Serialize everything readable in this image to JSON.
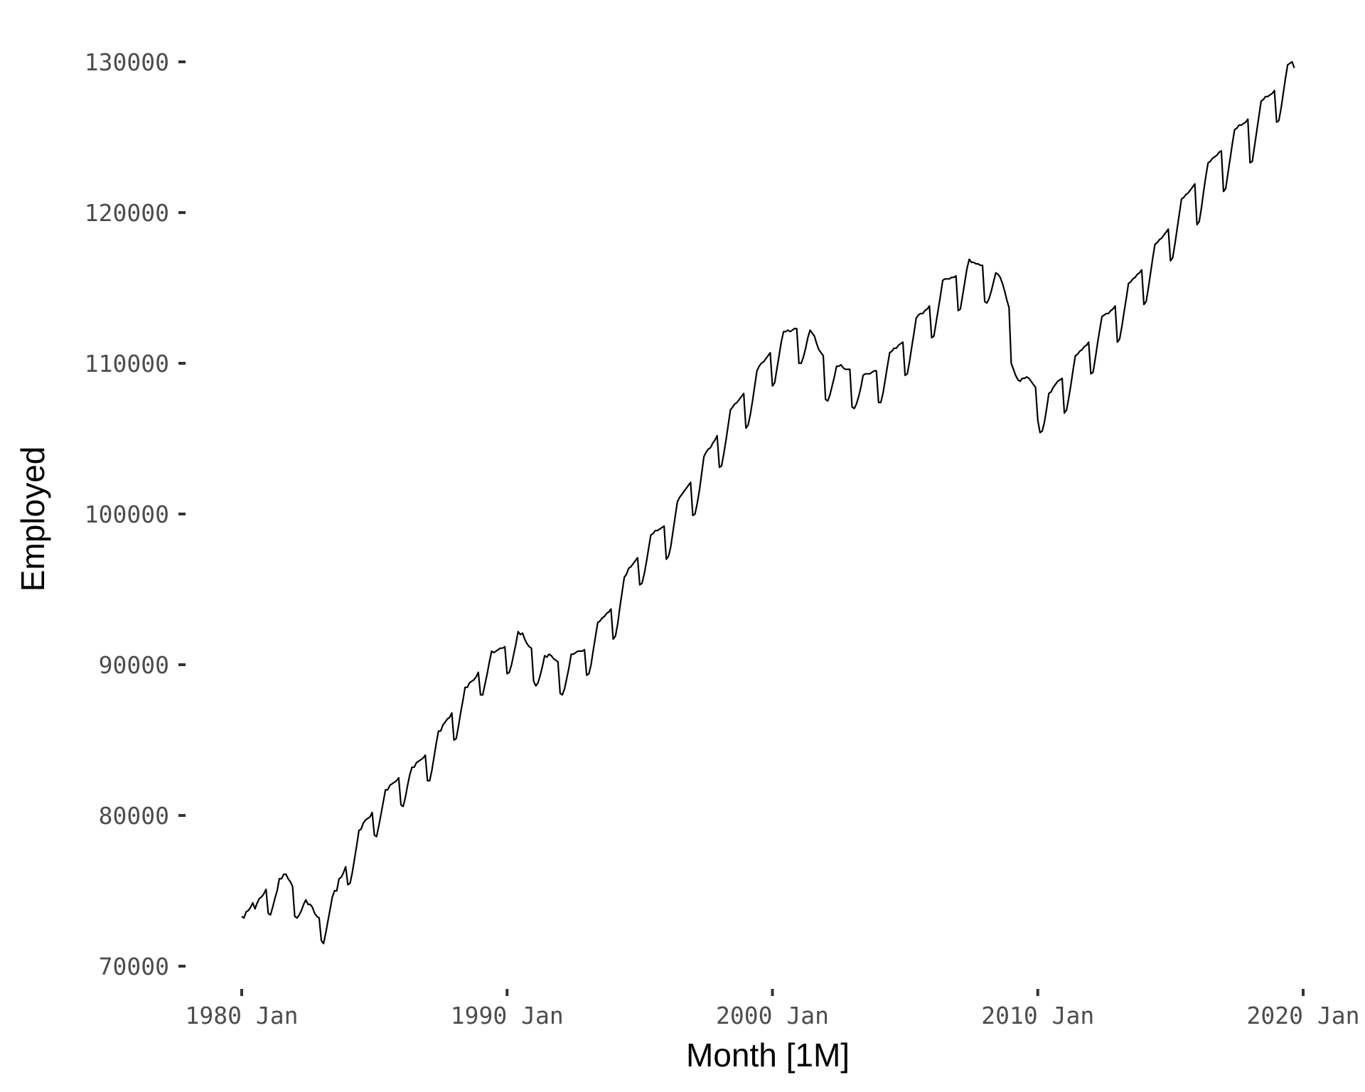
{
  "chart_data": {
    "type": "line",
    "title": "",
    "xlabel": "Month [1M]",
    "ylabel": "Employed",
    "xlim": [
      1980.0,
      2020.0
    ],
    "ylim": [
      70000,
      130000
    ],
    "x_ticks": [
      {
        "value": 1980,
        "label": "1980 Jan"
      },
      {
        "value": 1990,
        "label": "1990 Jan"
      },
      {
        "value": 2000,
        "label": "2000 Jan"
      },
      {
        "value": 2010,
        "label": "2010 Jan"
      },
      {
        "value": 2020,
        "label": "2020 Jan"
      }
    ],
    "y_ticks": [
      {
        "value": 70000,
        "label": "70000"
      },
      {
        "value": 80000,
        "label": "80000"
      },
      {
        "value": 90000,
        "label": "90000"
      },
      {
        "value": 100000,
        "label": "100000"
      },
      {
        "value": 110000,
        "label": "110000"
      },
      {
        "value": 120000,
        "label": "120000"
      },
      {
        "value": 130000,
        "label": "130000"
      }
    ],
    "grid": false,
    "legend": "none",
    "line_color": "#000000",
    "series": [
      {
        "x": [
          "1980-01",
          "1980-02",
          "1980-03",
          "1980-04",
          "1980-05",
          "1980-06",
          "1980-07",
          "1980-08",
          "1980-09",
          "1980-10",
          "1980-11",
          "1980-12",
          "1981-01",
          "1981-02",
          "1981-03",
          "1981-04",
          "1981-05",
          "1981-06",
          "1981-07",
          "1981-08",
          "1981-09",
          "1981-10",
          "1981-11",
          "1981-12",
          "1982-01",
          "1982-02",
          "1982-03",
          "1982-04",
          "1982-05",
          "1982-06",
          "1982-07",
          "1982-08",
          "1982-09",
          "1982-10",
          "1982-11",
          "1982-12",
          "1983-01",
          "1983-02",
          "1983-03",
          "1983-04",
          "1983-05",
          "1983-06",
          "1983-07",
          "1983-08",
          "1983-09",
          "1983-10",
          "1983-11",
          "1983-12",
          "1984-01",
          "1984-02",
          "1984-03",
          "1984-04",
          "1984-05",
          "1984-06",
          "1984-07",
          "1984-08",
          "1984-09",
          "1984-10",
          "1984-11",
          "1984-12",
          "1985-01",
          "1985-02",
          "1985-03",
          "1985-04",
          "1985-05",
          "1985-06",
          "1985-07",
          "1985-08",
          "1985-09",
          "1985-10",
          "1985-11",
          "1985-12",
          "1986-01",
          "1986-02",
          "1986-03",
          "1986-04",
          "1986-05",
          "1986-06",
          "1986-07",
          "1986-08",
          "1986-09",
          "1986-10",
          "1986-11",
          "1986-12",
          "1987-01",
          "1987-02",
          "1987-03",
          "1987-04",
          "1987-05",
          "1987-06",
          "1987-07",
          "1987-08",
          "1987-09",
          "1987-10",
          "1987-11",
          "1987-12",
          "1988-01",
          "1988-02",
          "1988-03",
          "1988-04",
          "1988-05",
          "1988-06",
          "1988-07",
          "1988-08",
          "1988-09",
          "1988-10",
          "1988-11",
          "1988-12",
          "1989-01",
          "1989-02",
          "1989-03",
          "1989-04",
          "1989-05",
          "1989-06",
          "1989-07",
          "1989-08",
          "1989-09",
          "1989-10",
          "1989-11",
          "1989-12",
          "1990-01",
          "1990-02",
          "1990-03",
          "1990-04",
          "1990-05",
          "1990-06",
          "1990-07",
          "1990-08",
          "1990-09",
          "1990-10",
          "1990-11",
          "1990-12",
          "1991-01",
          "1991-02",
          "1991-03",
          "1991-04",
          "1991-05",
          "1991-06",
          "1991-07",
          "1991-08",
          "1991-09",
          "1991-10",
          "1991-11",
          "1991-12",
          "1992-01",
          "1992-02",
          "1992-03",
          "1992-04",
          "1992-05",
          "1992-06",
          "1992-07",
          "1992-08",
          "1992-09",
          "1992-10",
          "1992-11",
          "1992-12",
          "1993-01",
          "1993-02",
          "1993-03",
          "1993-04",
          "1993-05",
          "1993-06",
          "1993-07",
          "1993-08",
          "1993-09",
          "1993-10",
          "1993-11",
          "1993-12",
          "1994-01",
          "1994-02",
          "1994-03",
          "1994-04",
          "1994-05",
          "1994-06",
          "1994-07",
          "1994-08",
          "1994-09",
          "1994-10",
          "1994-11",
          "1994-12",
          "1995-01",
          "1995-02",
          "1995-03",
          "1995-04",
          "1995-05",
          "1995-06",
          "1995-07",
          "1995-08",
          "1995-09",
          "1995-10",
          "1995-11",
          "1995-12",
          "1996-01",
          "1996-02",
          "1996-03",
          "1996-04",
          "1996-05",
          "1996-06",
          "1996-07",
          "1996-08",
          "1996-09",
          "1996-10",
          "1996-11",
          "1996-12",
          "1997-01",
          "1997-02",
          "1997-03",
          "1997-04",
          "1997-05",
          "1997-06",
          "1997-07",
          "1997-08",
          "1997-09",
          "1997-10",
          "1997-11",
          "1997-12",
          "1998-01",
          "1998-02",
          "1998-03",
          "1998-04",
          "1998-05",
          "1998-06",
          "1998-07",
          "1998-08",
          "1998-09",
          "1998-10",
          "1998-11",
          "1998-12",
          "1999-01",
          "1999-02",
          "1999-03",
          "1999-04",
          "1999-05",
          "1999-06",
          "1999-07",
          "1999-08",
          "1999-09",
          "1999-10",
          "1999-11",
          "1999-12",
          "2000-01",
          "2000-02",
          "2000-03",
          "2000-04",
          "2000-05",
          "2000-06",
          "2000-07",
          "2000-08",
          "2000-09",
          "2000-10",
          "2000-11",
          "2000-12",
          "2001-01",
          "2001-02",
          "2001-03",
          "2001-04",
          "2001-05",
          "2001-06",
          "2001-07",
          "2001-08",
          "2001-09",
          "2001-10",
          "2001-11",
          "2001-12",
          "2002-01",
          "2002-02",
          "2002-03",
          "2002-04",
          "2002-05",
          "2002-06",
          "2002-07",
          "2002-08",
          "2002-09",
          "2002-10",
          "2002-11",
          "2002-12",
          "2003-01",
          "2003-02",
          "2003-03",
          "2003-04",
          "2003-05",
          "2003-06",
          "2003-07",
          "2003-08",
          "2003-09",
          "2003-10",
          "2003-11",
          "2003-12",
          "2004-01",
          "2004-02",
          "2004-03",
          "2004-04",
          "2004-05",
          "2004-06",
          "2004-07",
          "2004-08",
          "2004-09",
          "2004-10",
          "2004-11",
          "2004-12",
          "2005-01",
          "2005-02",
          "2005-03",
          "2005-04",
          "2005-05",
          "2005-06",
          "2005-07",
          "2005-08",
          "2005-09",
          "2005-10",
          "2005-11",
          "2005-12",
          "2006-01",
          "2006-02",
          "2006-03",
          "2006-04",
          "2006-05",
          "2006-06",
          "2006-07",
          "2006-08",
          "2006-09",
          "2006-10",
          "2006-11",
          "2006-12",
          "2007-01",
          "2007-02",
          "2007-03",
          "2007-04",
          "2007-05",
          "2007-06",
          "2007-07",
          "2007-08",
          "2007-09",
          "2007-10",
          "2007-11",
          "2007-12",
          "2008-01",
          "2008-02",
          "2008-03",
          "2008-04",
          "2008-05",
          "2008-06",
          "2008-07",
          "2008-08",
          "2008-09",
          "2008-10",
          "2008-11",
          "2008-12",
          "2009-01",
          "2009-02",
          "2009-03",
          "2009-04",
          "2009-05",
          "2009-06",
          "2009-07",
          "2009-08",
          "2009-09",
          "2009-10",
          "2009-11",
          "2009-12",
          "2010-01",
          "2010-02",
          "2010-03",
          "2010-04",
          "2010-05",
          "2010-06",
          "2010-07",
          "2010-08",
          "2010-09",
          "2010-10",
          "2010-11",
          "2010-12",
          "2011-01",
          "2011-02",
          "2011-03",
          "2011-04",
          "2011-05",
          "2011-06",
          "2011-07",
          "2011-08",
          "2011-09",
          "2011-10",
          "2011-11",
          "2011-12",
          "2012-01",
          "2012-02",
          "2012-03",
          "2012-04",
          "2012-05",
          "2012-06",
          "2012-07",
          "2012-08",
          "2012-09",
          "2012-10",
          "2012-11",
          "2012-12",
          "2013-01",
          "2013-02",
          "2013-03",
          "2013-04",
          "2013-05",
          "2013-06",
          "2013-07",
          "2013-08",
          "2013-09",
          "2013-10",
          "2013-11",
          "2013-12",
          "2014-01",
          "2014-02",
          "2014-03",
          "2014-04",
          "2014-05",
          "2014-06",
          "2014-07",
          "2014-08",
          "2014-09",
          "2014-10",
          "2014-11",
          "2014-12",
          "2015-01",
          "2015-02",
          "2015-03",
          "2015-04",
          "2015-05",
          "2015-06",
          "2015-07",
          "2015-08",
          "2015-09",
          "2015-10",
          "2015-11",
          "2015-12",
          "2016-01",
          "2016-02",
          "2016-03",
          "2016-04",
          "2016-05",
          "2016-06",
          "2016-07",
          "2016-08",
          "2016-09",
          "2016-10",
          "2016-11",
          "2016-12",
          "2017-01",
          "2017-02",
          "2017-03",
          "2017-04",
          "2017-05",
          "2017-06",
          "2017-07",
          "2017-08",
          "2017-09",
          "2017-10",
          "2017-11",
          "2017-12",
          "2018-01",
          "2018-02",
          "2018-03",
          "2018-04",
          "2018-05",
          "2018-06",
          "2018-07",
          "2018-08",
          "2018-09",
          "2018-10",
          "2018-11",
          "2018-12",
          "2019-01",
          "2019-02",
          "2019-03",
          "2019-04",
          "2019-05",
          "2019-06",
          "2019-07",
          "2019-08",
          "2019-09"
        ],
        "values": [
          73300,
          73200,
          73600,
          73700,
          73900,
          74200,
          73800,
          74200,
          74500,
          74600,
          74800,
          75100,
          73500,
          73400,
          73900,
          74500,
          75000,
          75800,
          75800,
          76100,
          76100,
          75800,
          75600,
          75300,
          73300,
          73200,
          73400,
          73700,
          74100,
          74400,
          74100,
          74100,
          73900,
          73500,
          73300,
          73200,
          71700,
          71500,
          72200,
          73000,
          73800,
          74600,
          75000,
          75000,
          75800,
          75900,
          76200,
          76600,
          75400,
          75500,
          76200,
          77100,
          78000,
          79000,
          79100,
          79500,
          79700,
          79800,
          79900,
          80200,
          78700,
          78600,
          79300,
          80100,
          80900,
          81700,
          81700,
          82000,
          82100,
          82200,
          82300,
          82500,
          80700,
          80600,
          81200,
          82000,
          82700,
          83200,
          83200,
          83500,
          83600,
          83700,
          83800,
          84000,
          82300,
          82300,
          83000,
          83900,
          84800,
          85600,
          85600,
          86000,
          86200,
          86400,
          86500,
          86800,
          85000,
          85100,
          85900,
          86800,
          87600,
          88500,
          88500,
          88800,
          88900,
          89000,
          89200,
          89500,
          88000,
          88000,
          88700,
          89400,
          90200,
          90900,
          90800,
          90900,
          91000,
          91100,
          91100,
          91200,
          89400,
          89500,
          90000,
          90700,
          91400,
          92200,
          92000,
          92100,
          91700,
          91400,
          91200,
          91100,
          88900,
          88600,
          88800,
          89300,
          89900,
          90600,
          90500,
          90700,
          90600,
          90400,
          90300,
          90200,
          88100,
          88000,
          88400,
          89100,
          89800,
          90700,
          90700,
          90800,
          90900,
          90900,
          90900,
          91000,
          89300,
          89400,
          90000,
          91000,
          91900,
          92800,
          92900,
          93100,
          93200,
          93400,
          93500,
          93700,
          91700,
          91900,
          92700,
          93800,
          94800,
          95800,
          96000,
          96400,
          96500,
          96700,
          96900,
          97100,
          95300,
          95400,
          96000,
          96800,
          97700,
          98600,
          98700,
          98900,
          98900,
          99000,
          99100,
          99200,
          97000,
          97200,
          97800,
          98800,
          99800,
          100800,
          101100,
          101300,
          101500,
          101700,
          101900,
          102100,
          99900,
          100000,
          100700,
          101600,
          102700,
          103800,
          104100,
          104300,
          104400,
          104700,
          104900,
          105200,
          103100,
          103200,
          104000,
          104900,
          105900,
          106900,
          107100,
          107300,
          107400,
          107600,
          107800,
          108000,
          105700,
          105900,
          106600,
          107500,
          108500,
          109500,
          109800,
          110000,
          110100,
          110300,
          110500,
          110700,
          108500,
          108700,
          109600,
          110500,
          111400,
          112100,
          112100,
          112200,
          112100,
          112200,
          112300,
          112300,
          110000,
          110000,
          110400,
          111000,
          111700,
          112200,
          112000,
          111800,
          111300,
          110900,
          110700,
          110500,
          107600,
          107500,
          107900,
          108500,
          109100,
          109800,
          109800,
          109900,
          109700,
          109600,
          109600,
          109600,
          107100,
          107000,
          107300,
          107800,
          108400,
          109200,
          109300,
          109300,
          109300,
          109400,
          109500,
          109500,
          107400,
          107400,
          108000,
          108900,
          109800,
          110700,
          110800,
          111000,
          111000,
          111200,
          111300,
          111400,
          109200,
          109300,
          110100,
          111100,
          112000,
          113000,
          113200,
          113300,
          113300,
          113500,
          113600,
          113800,
          111700,
          111800,
          112700,
          113600,
          114500,
          115500,
          115600,
          115600,
          115600,
          115700,
          115700,
          115800,
          113500,
          113600,
          114500,
          115400,
          116300,
          116900,
          116700,
          116700,
          116600,
          116600,
          116500,
          116500,
          114100,
          114000,
          114300,
          114800,
          115400,
          116000,
          115900,
          115700,
          115300,
          114800,
          114200,
          113700,
          110000,
          109600,
          109200,
          108900,
          108800,
          109000,
          109000,
          109100,
          109000,
          108800,
          108600,
          108400,
          106200,
          105400,
          105500,
          106100,
          107000,
          108000,
          108100,
          108400,
          108600,
          108800,
          108900,
          109000,
          106700,
          106900,
          107700,
          108600,
          109600,
          110500,
          110600,
          110800,
          110900,
          111100,
          111200,
          111400,
          109300,
          109400,
          110300,
          111300,
          112200,
          113100,
          113200,
          113300,
          113300,
          113500,
          113600,
          113800,
          111400,
          111600,
          112400,
          113400,
          114300,
          115300,
          115400,
          115600,
          115700,
          115900,
          116000,
          116200,
          113900,
          114100,
          115000,
          116000,
          117000,
          117900,
          118000,
          118200,
          118300,
          118500,
          118700,
          118900,
          116800,
          117000,
          117900,
          118900,
          119900,
          120900,
          121000,
          121200,
          121300,
          121500,
          121700,
          121900,
          119200,
          119400,
          120300,
          121400,
          122400,
          123300,
          123400,
          123600,
          123700,
          123800,
          124000,
          124100,
          121400,
          121600,
          122600,
          123600,
          124600,
          125500,
          125600,
          125800,
          125800,
          125900,
          126000,
          126200,
          123300,
          123400,
          124400,
          125400,
          126400,
          127400,
          127500,
          127700,
          127700,
          127800,
          127900,
          128100,
          126000,
          126100,
          126900,
          127900,
          128900,
          129800,
          129900,
          130000,
          129600
        ]
      }
    ]
  }
}
